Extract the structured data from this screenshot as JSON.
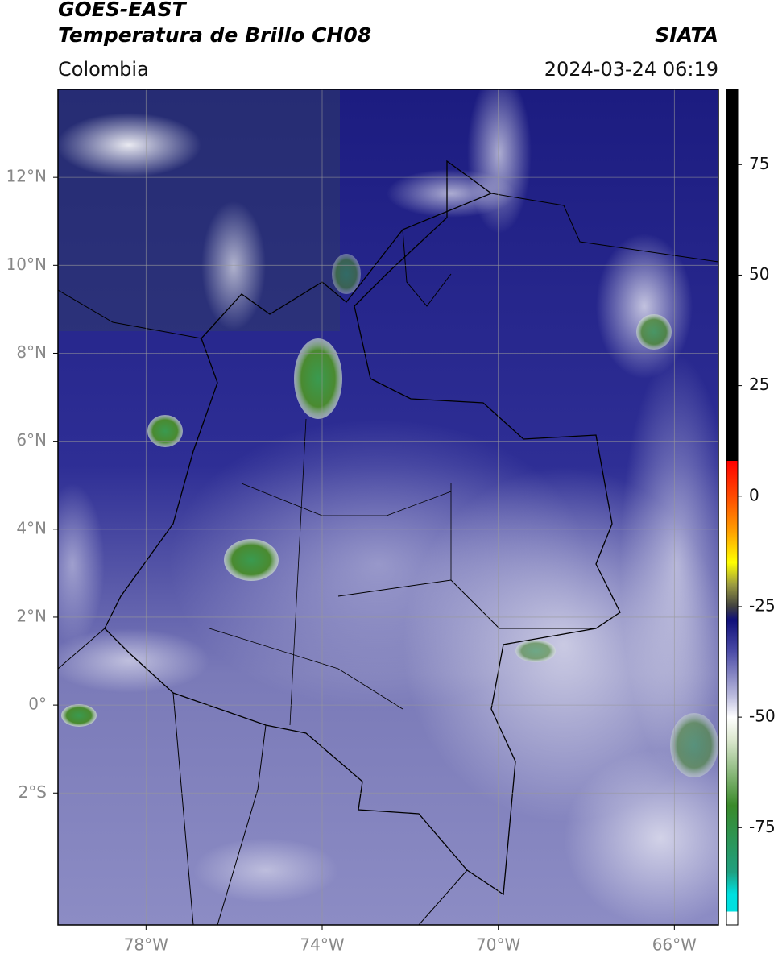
{
  "header": {
    "title": "GOES-EAST",
    "subtitle": "Temperatura de Brillo CH08",
    "source": "SIATA",
    "region": "Colombia",
    "datetime": "2024-03-24 06:19"
  },
  "map": {
    "xlim": [
      -80,
      -65
    ],
    "ylim": [
      -5,
      14
    ],
    "xticks": [
      {
        "value": -78,
        "label": "78°W"
      },
      {
        "value": -74,
        "label": "74°W"
      },
      {
        "value": -70,
        "label": "70°W"
      },
      {
        "value": -66,
        "label": "66°W"
      }
    ],
    "yticks": [
      {
        "value": 12,
        "label": "12°N"
      },
      {
        "value": 10,
        "label": "10°N"
      },
      {
        "value": 8,
        "label": "8°N"
      },
      {
        "value": 6,
        "label": "6°N"
      },
      {
        "value": 4,
        "label": "4°N"
      },
      {
        "value": 2,
        "label": "2°N"
      },
      {
        "value": 0,
        "label": "0°"
      },
      {
        "value": -2,
        "label": "2°S"
      }
    ],
    "grid": true
  },
  "colorbar": {
    "lim": [
      -97,
      92
    ],
    "ticks": [
      75,
      50,
      25,
      0,
      -25,
      -50,
      -75
    ],
    "colormap": [
      {
        "value": 92,
        "color": "#000000"
      },
      {
        "value": 8,
        "color": "#000000"
      },
      {
        "value": 8,
        "color": "#ff0000"
      },
      {
        "value": 0,
        "color": "#ff4a00"
      },
      {
        "value": -8,
        "color": "#ffa000"
      },
      {
        "value": -15,
        "color": "#ffff00"
      },
      {
        "value": -20,
        "color": "#9c9c40"
      },
      {
        "value": -25,
        "color": "#404040"
      },
      {
        "value": -28,
        "color": "#10107a"
      },
      {
        "value": -35,
        "color": "#4a4aa6"
      },
      {
        "value": -45,
        "color": "#b8b8dc"
      },
      {
        "value": -50,
        "color": "#ffffff"
      },
      {
        "value": -55,
        "color": "#dde8d0"
      },
      {
        "value": -70,
        "color": "#3a8a2a"
      },
      {
        "value": -85,
        "color": "#20a080"
      },
      {
        "value": -90,
        "color": "#00e0e0"
      },
      {
        "value": -94,
        "color": "#00e0e0"
      },
      {
        "value": -94,
        "color": "#ffffff"
      },
      {
        "value": -97,
        "color": "#ffffff"
      }
    ]
  }
}
